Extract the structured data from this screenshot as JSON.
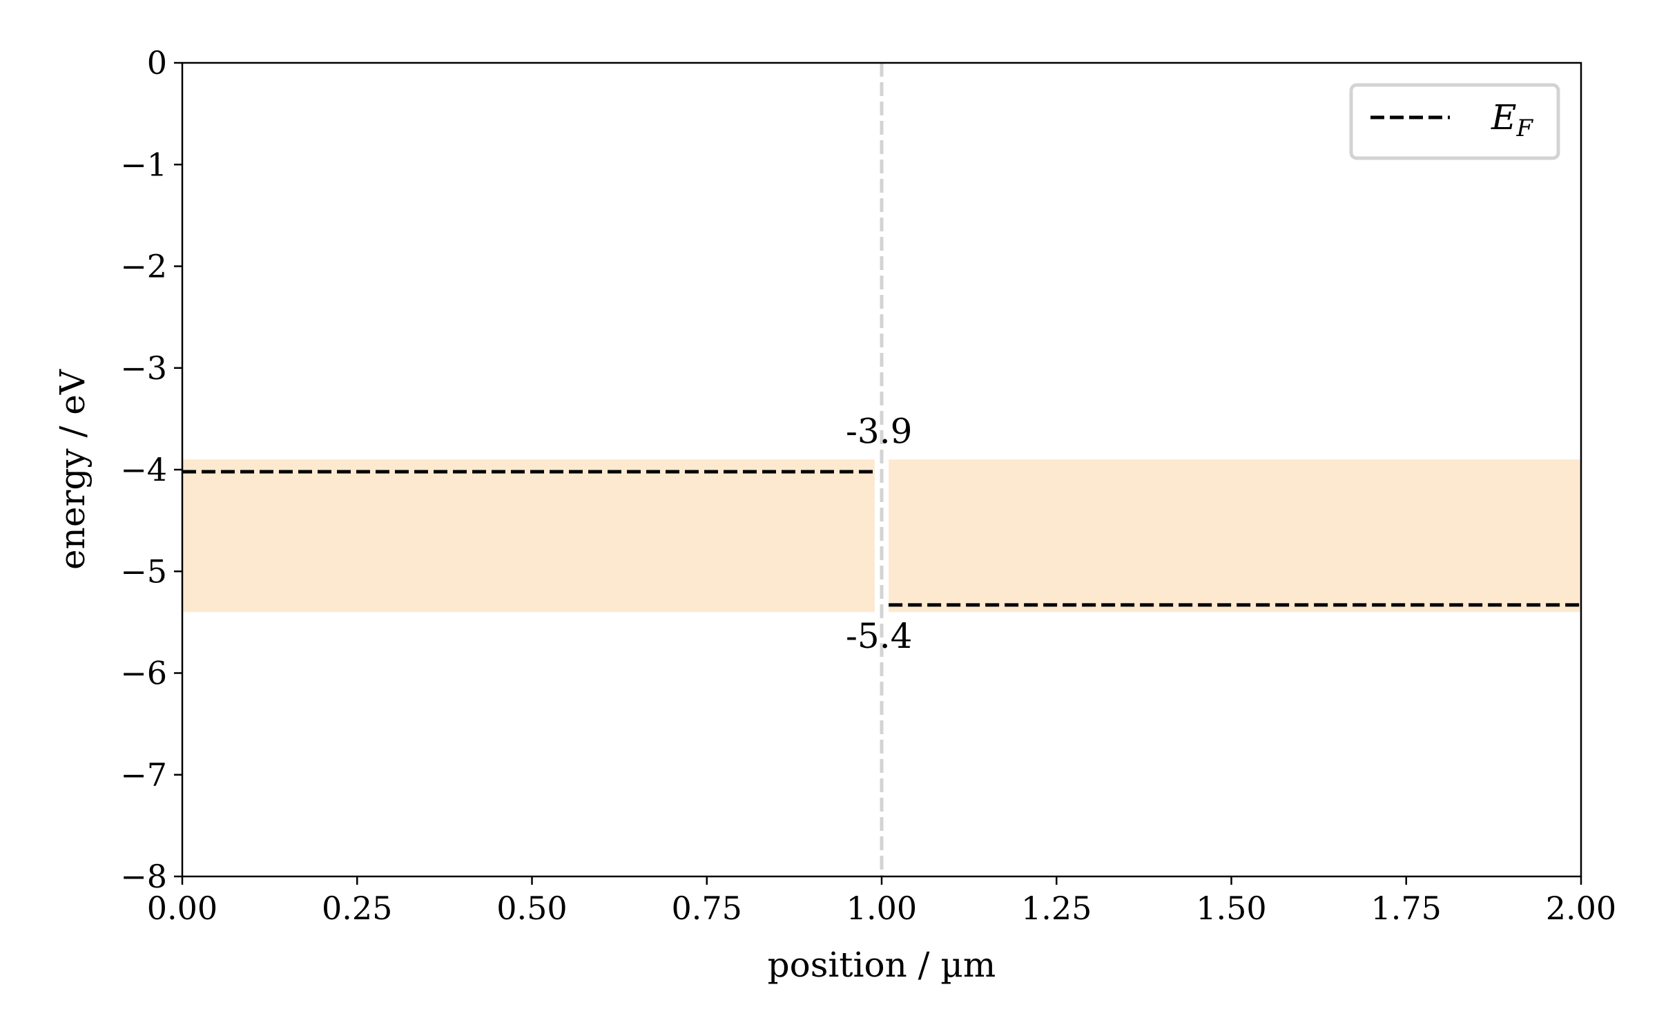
{
  "chart_data": {
    "type": "line",
    "xlabel": "position / µm",
    "ylabel": "energy / eV",
    "xlim": [
      0.0,
      2.0
    ],
    "ylim": [
      -8,
      0
    ],
    "x_ticks": [
      0.0,
      0.25,
      0.5,
      0.75,
      1.0,
      1.25,
      1.5,
      1.75,
      2.0
    ],
    "x_tick_labels": [
      "0.00",
      "0.25",
      "0.50",
      "0.75",
      "1.00",
      "1.25",
      "1.50",
      "1.75",
      "2.00"
    ],
    "y_ticks": [
      0,
      -1,
      -2,
      -3,
      -4,
      -5,
      -6,
      -7,
      -8
    ],
    "y_tick_labels": [
      "0",
      "−1",
      "−2",
      "−3",
      "−4",
      "−5",
      "−6",
      "−7",
      "−8"
    ],
    "grid": false,
    "bands": [
      {
        "x_range": [
          0.0,
          0.99
        ],
        "y_range": [
          -5.4,
          -3.9
        ],
        "color": "#fde9cf"
      },
      {
        "x_range": [
          1.01,
          2.0
        ],
        "y_range": [
          -5.4,
          -3.9
        ],
        "color": "#fde9cf"
      }
    ],
    "series": [
      {
        "name": "E_F",
        "style": "dashed",
        "color": "#000000",
        "x": [
          0.0,
          0.99
        ],
        "y": [
          -4.02,
          -4.02
        ]
      },
      {
        "style": "dashed",
        "color": "#000000",
        "x": [
          1.01,
          2.0
        ],
        "y": [
          -5.33,
          -5.33
        ]
      }
    ],
    "vline": {
      "x": 1.0,
      "style": "dashed",
      "color": "#d3d3d3"
    },
    "annotations": [
      {
        "text": "-3.9",
        "x": 1.0,
        "y": -3.9
      },
      {
        "text": "-5.4",
        "x": 1.0,
        "y": -5.4
      }
    ],
    "legend": {
      "position": "top-right",
      "label_main": "E",
      "label_sub": "F"
    }
  }
}
